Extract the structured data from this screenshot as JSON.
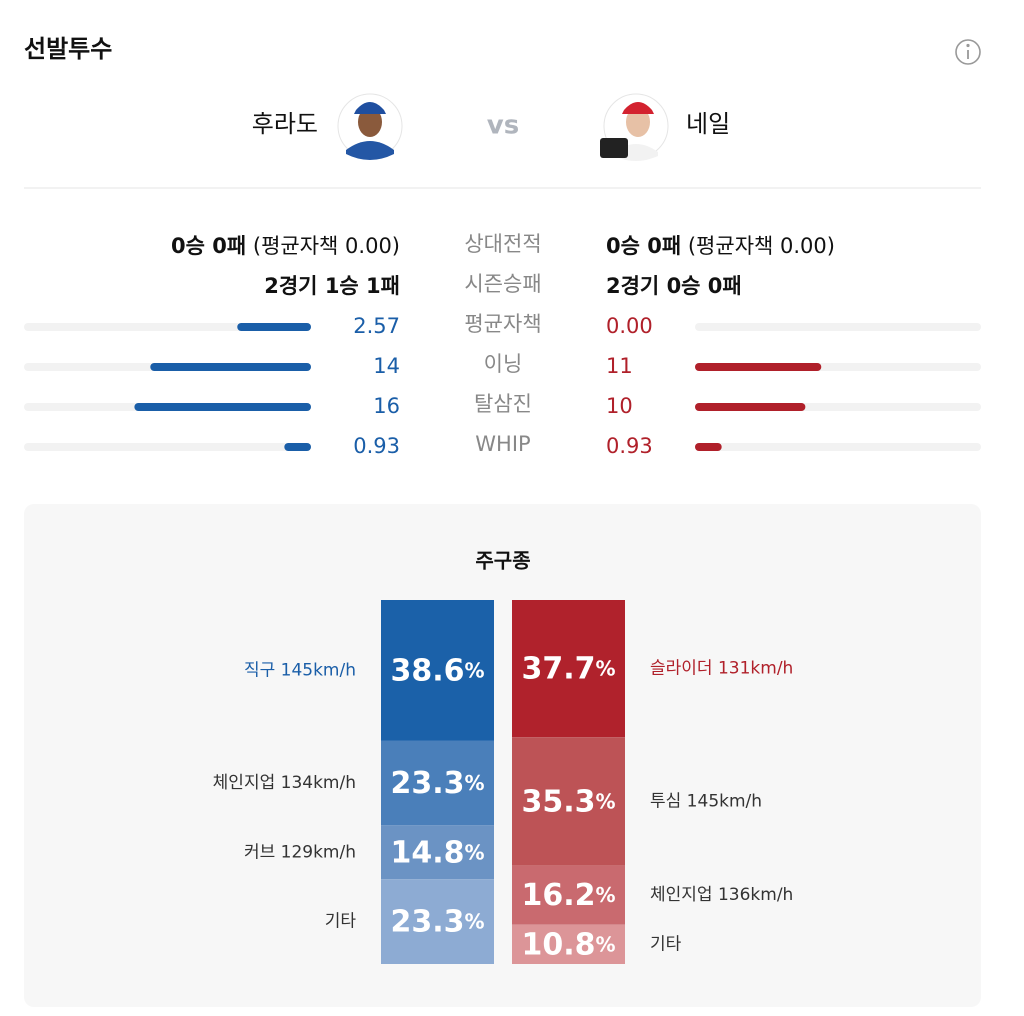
{
  "header": {
    "title": "선발투수"
  },
  "matchup": {
    "home_name": "후라도",
    "vs": "vs",
    "away_name": "네일"
  },
  "stats": {
    "labels": [
      "상대전적",
      "시즌승패",
      "평균자책",
      "이닝",
      "탈삼진",
      "WHIP"
    ],
    "home_records": [
      [
        "0승 0패",
        " (평균자책 0.00)"
      ],
      [
        "2경기 1승 1패"
      ]
    ],
    "away_records": [
      [
        "0승 0패",
        " (평균자책 0.00)"
      ],
      [
        "2경기 0승 0패"
      ]
    ],
    "home_color": "#1a5ea8",
    "away_color": "#b0202a",
    "rows": [
      {
        "xlim": [
          0,
          10
        ],
        "home": 2.57,
        "home_label": "2.57",
        "away": 0,
        "away_label": "0.00"
      },
      {
        "xlim": [
          0,
          25
        ],
        "home": 14,
        "home_label": "14",
        "away": 11,
        "away_label": "11"
      },
      {
        "xlim": [
          0,
          26
        ],
        "home": 16,
        "home_label": "16",
        "away": 10,
        "away_label": "10"
      },
      {
        "xlim": [
          0,
          10
        ],
        "home": 0.93,
        "home_label": "0.93",
        "away": 0.93,
        "away_label": "0.93"
      }
    ]
  },
  "pitch_mix": {
    "title": "주구종",
    "ylim": [
      0,
      100
    ],
    "pitchers": [
      {
        "names": [
          "직구 145km/h",
          "체인지업 134km/h",
          "커브 129km/h",
          "기타"
        ],
        "values": [
          38.6,
          23.3,
          14.8,
          23.3
        ],
        "value_labels": [
          "38.6%",
          "23.3%",
          "14.8%",
          "23.3%"
        ],
        "colors": [
          "#1b61a9",
          "#4a7fba",
          "#6b93c4",
          "#8dabd3"
        ],
        "name_color": "#1a5ea8"
      },
      {
        "names": [
          "슬라이더 131km/h",
          "투심 145km/h",
          "체인지업 136km/h",
          "기타"
        ],
        "values": [
          37.7,
          35.3,
          16.2,
          10.8
        ],
        "value_labels": [
          "37.7%",
          "35.3%",
          "16.2%",
          "10.8%"
        ],
        "colors": [
          "#b0222c",
          "#bd5356",
          "#c96a6f",
          "#dc9598"
        ],
        "name_color": "#b0202a"
      }
    ]
  }
}
